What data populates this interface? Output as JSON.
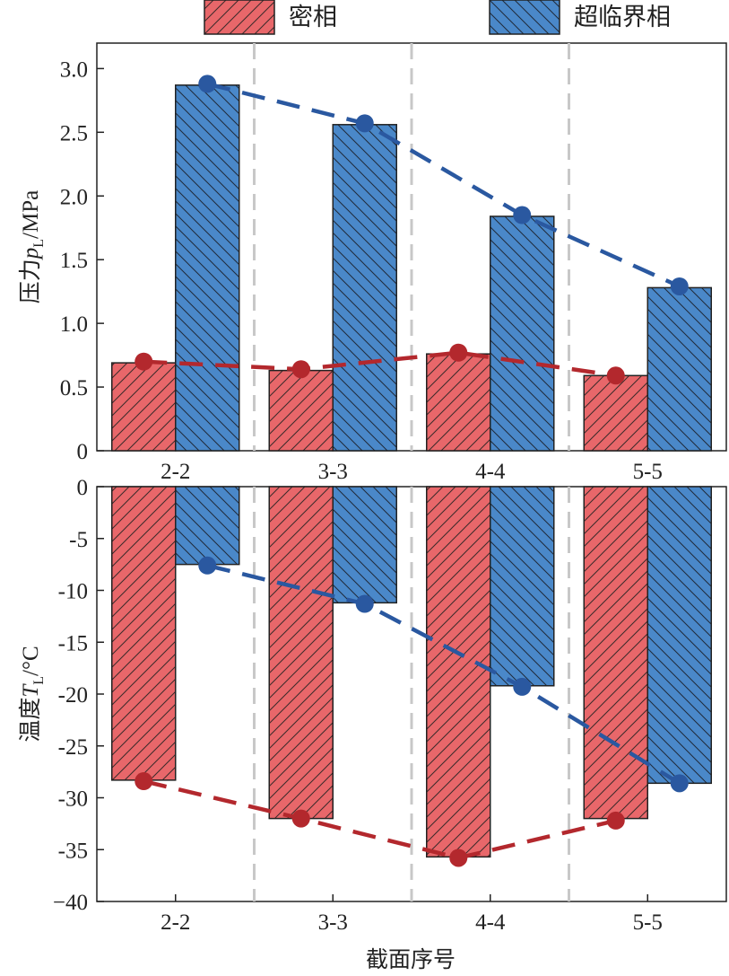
{
  "colors": {
    "dense": "#e8676a",
    "dense_line": "#b3282d",
    "supercritical": "#4a88c9",
    "supercritical_line": "#2a58a0",
    "separator": "#c8c8c8"
  },
  "legend": [
    {
      "key": "dense",
      "label": "密相"
    },
    {
      "key": "supercritical",
      "label": "超临界相"
    }
  ],
  "chart_data": [
    {
      "type": "bar",
      "title": "",
      "xlabel": "",
      "ylabel": "压力",
      "ylabel_symbol": "p",
      "ylabel_subscript": "L",
      "ylabel_unit": "/MPa",
      "ylim": [
        0,
        3.2
      ],
      "yticks": [
        0,
        0.5,
        1.0,
        1.5,
        2.0,
        2.5,
        3.0
      ],
      "ytick_labels": [
        "0",
        "0.5",
        "1.0",
        "1.5",
        "2.0",
        "2.5",
        "3.0"
      ],
      "categories": [
        "2-2",
        "3-3",
        "4-4",
        "5-5"
      ],
      "series": [
        {
          "key": "dense",
          "name": "密相",
          "values": [
            0.69,
            0.63,
            0.76,
            0.59
          ],
          "line_values": [
            0.7,
            0.64,
            0.77,
            0.59
          ]
        },
        {
          "key": "supercritical",
          "name": "超临界相",
          "values": [
            2.87,
            2.56,
            1.84,
            1.28
          ],
          "line_values": [
            2.88,
            2.57,
            1.85,
            1.29
          ]
        }
      ]
    },
    {
      "type": "bar",
      "title": "",
      "xlabel": "截面序号",
      "ylabel": "温度",
      "ylabel_symbol": "T",
      "ylabel_subscript": "L",
      "ylabel_unit": "/°C",
      "ylim": [
        -40,
        0
      ],
      "yticks": [
        0,
        -5,
        -10,
        -15,
        -20,
        -25,
        -30,
        -35,
        -40
      ],
      "ytick_labels": [
        "0",
        "-5",
        "-10",
        "-15",
        "-20",
        "-25",
        "-30",
        "-35",
        "−40"
      ],
      "categories": [
        "2-2",
        "3-3",
        "4-4",
        "5-5"
      ],
      "series": [
        {
          "key": "dense",
          "name": "密相",
          "values": [
            -28.3,
            -32.0,
            -35.7,
            -32.0
          ],
          "line_values": [
            -28.4,
            -32.0,
            -35.8,
            -32.2
          ]
        },
        {
          "key": "supercritical",
          "name": "超临界相",
          "values": [
            -7.5,
            -11.2,
            -19.2,
            -28.6
          ],
          "line_values": [
            -7.6,
            -11.3,
            -19.3,
            -28.6
          ]
        }
      ]
    }
  ]
}
